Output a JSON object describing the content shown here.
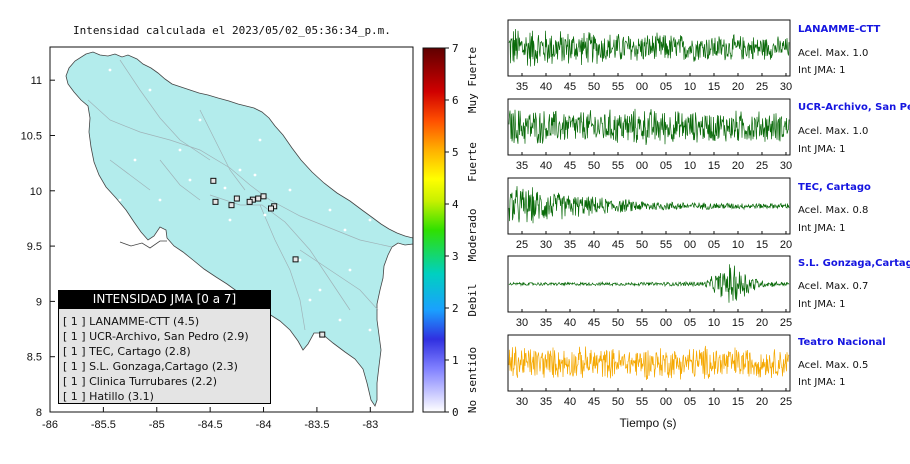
{
  "title": "Intensidad calculada el 2023/05/02_05:36:34_p.m.",
  "map": {
    "x_ticks": [
      "-86",
      "-85.5",
      "-85",
      "-84.5",
      "-84",
      "-83.5",
      "-83"
    ],
    "y_ticks": [
      "11",
      "10.5",
      "10",
      "9.5",
      "9",
      "8.5",
      "8"
    ],
    "colors": {
      "land": "#b3ecec",
      "sea": "#ffffff",
      "roads": "#9fb3b8"
    }
  },
  "legend": {
    "title": "INTENSIDAD JMA [0 a 7]",
    "items": [
      "[ 1 ]  LANAMME-CTT (4.5)",
      "[ 1 ]  UCR-Archivo, San Pedro (2.9)",
      "[ 1 ]  TEC, Cartago (2.8)",
      "[ 1 ]  S.L. Gonzaga,Cartago (2.3)",
      "[ 1 ]  Clinica Turrubares (2.2)",
      "[ 1 ]  Hatillo (3.1)"
    ]
  },
  "colorbar": {
    "ticks": [
      "7",
      "6",
      "5",
      "4",
      "3",
      "2",
      "1",
      "0"
    ],
    "labels": [
      "Muy Fuerte",
      "Fuerte",
      "Moderado",
      "Debil",
      "No sentido"
    ]
  },
  "traces_xlabel": "Tiempo (s)",
  "chart_data": [
    {
      "type": "scatter",
      "title": "Intensidad calculada el 2023/05/02_05:36:34_p.m.",
      "xlim": [
        -86,
        -82.6
      ],
      "ylim": [
        8,
        11.3
      ],
      "points": [
        {
          "x": -84.05,
          "y": 9.93
        },
        {
          "x": -84.0,
          "y": 9.95
        },
        {
          "x": -83.9,
          "y": 9.86
        },
        {
          "x": -83.93,
          "y": 9.84
        },
        {
          "x": -84.1,
          "y": 9.92
        },
        {
          "x": -84.13,
          "y": 9.9
        },
        {
          "x": -84.45,
          "y": 9.9
        },
        {
          "x": -84.25,
          "y": 9.93
        },
        {
          "x": -84.3,
          "y": 9.87
        },
        {
          "x": -84.47,
          "y": 10.09
        },
        {
          "x": -83.7,
          "y": 9.38
        },
        {
          "x": -83.45,
          "y": 8.7
        }
      ]
    },
    {
      "type": "line",
      "name": "LANAMME-CTT",
      "accel_label": "Acel. Max. 1.0",
      "intensity_label": "Int JMA: 1",
      "color": "#0a6a0a",
      "xticks": [
        "35",
        "40",
        "45",
        "50",
        "55",
        "00",
        "05",
        "10",
        "15",
        "20",
        "25",
        "30"
      ],
      "envelope": [
        0.95,
        0.85,
        0.75,
        0.7,
        0.65,
        0.62,
        0.6,
        0.58,
        0.55,
        0.52,
        0.45
      ]
    },
    {
      "type": "line",
      "name": "UCR-Archivo, San Pedro",
      "accel_label": "Acel. Max. 1.0",
      "intensity_label": "Int JMA: 1",
      "color": "#0a6a0a",
      "xticks": [
        "35",
        "40",
        "45",
        "50",
        "55",
        "00",
        "05",
        "10",
        "15",
        "20",
        "25",
        "30"
      ],
      "envelope": [
        0.85,
        0.75,
        0.7,
        0.72,
        0.75,
        0.8,
        0.7,
        0.65,
        0.7,
        0.68,
        0.6
      ]
    },
    {
      "type": "line",
      "name": "TEC, Cartago",
      "accel_label": "Acel. Max. 0.8",
      "intensity_label": "Int JMA: 1",
      "color": "#0a6a0a",
      "xticks": [
        "25",
        "30",
        "35",
        "40",
        "45",
        "50",
        "55",
        "00",
        "05",
        "10",
        "15",
        "20"
      ],
      "envelope": [
        0.9,
        0.75,
        0.55,
        0.4,
        0.3,
        0.22,
        0.18,
        0.15,
        0.14,
        0.12,
        0.12
      ]
    },
    {
      "type": "line",
      "name": "S.L. Gonzaga,Cartago",
      "accel_label": "Acel. Max. 0.7",
      "intensity_label": "Int JMA: 1",
      "color": "#0a6a0a",
      "xticks": [
        "30",
        "35",
        "40",
        "45",
        "50",
        "55",
        "00",
        "05",
        "10",
        "15",
        "20",
        "25"
      ],
      "envelope": [
        0.07,
        0.07,
        0.07,
        0.07,
        0.07,
        0.08,
        0.09,
        0.12,
        0.95,
        0.15,
        0.08
      ]
    },
    {
      "type": "line",
      "name": "Teatro Nacional",
      "accel_label": "Acel. Max. 0.5",
      "intensity_label": "Int JMA: 1",
      "color": "#f5a800",
      "xticks": [
        "30",
        "35",
        "40",
        "45",
        "50",
        "55",
        "00",
        "05",
        "10",
        "15",
        "20",
        "25"
      ],
      "envelope": [
        0.8,
        0.7,
        0.65,
        0.7,
        0.6,
        0.7,
        0.65,
        0.75,
        0.7,
        0.6,
        0.65
      ]
    }
  ]
}
